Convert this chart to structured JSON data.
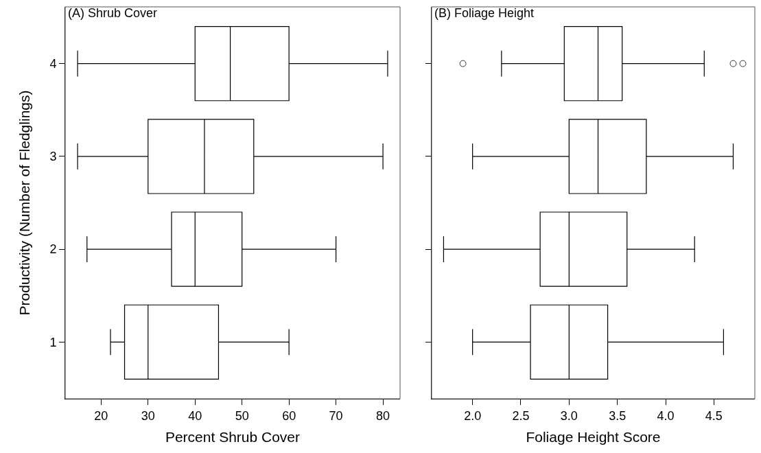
{
  "chart_data": [
    {
      "type": "box",
      "title": "(A) Shrub Cover",
      "xlabel": "Percent Shrub Cover",
      "ylabel": "Productivity (Number of Fledglings)",
      "orientation": "horizontal",
      "categories": [
        "4",
        "3",
        "2",
        "1"
      ],
      "boxes": [
        {
          "low": 15,
          "q1": 40,
          "median": 47.5,
          "q3": 60,
          "high": 81
        },
        {
          "low": 15,
          "q1": 30,
          "median": 42,
          "q3": 52.5,
          "high": 80
        },
        {
          "low": 17,
          "q1": 35,
          "median": 40,
          "q3": 50,
          "high": 70
        },
        {
          "low": 22,
          "q1": 25,
          "median": 30,
          "q3": 45,
          "high": 60
        }
      ],
      "xlim": [
        12.36,
        83.64
      ],
      "xticks": [
        20,
        30,
        40,
        50,
        60,
        70,
        80
      ]
    },
    {
      "type": "box",
      "title": "(B) Foliage Height",
      "xlabel": "Foliage Height Score",
      "orientation": "horizontal",
      "categories": [
        "4",
        "3",
        "2",
        "1"
      ],
      "boxes": [
        {
          "low": 2.3,
          "q1": 2.95,
          "median": 3.3,
          "q3": 3.55,
          "high": 4.4,
          "outliers": [
            1.9,
            4.7,
            4.8
          ]
        },
        {
          "low": 2.0,
          "q1": 3.0,
          "median": 3.3,
          "q3": 3.8,
          "high": 4.7
        },
        {
          "low": 1.7,
          "q1": 2.7,
          "median": 3.0,
          "q3": 3.6,
          "high": 4.3
        },
        {
          "low": 2.0,
          "q1": 2.6,
          "median": 3.0,
          "q3": 3.4,
          "high": 4.6
        }
      ],
      "xlim": [
        1.576,
        4.924
      ],
      "xticks": [
        {
          "value": 2,
          "label": "2.0"
        },
        {
          "value": 2.5,
          "label": "2.5"
        },
        {
          "value": 3,
          "label": "3.0"
        },
        {
          "value": 3.5,
          "label": "3.5"
        },
        {
          "value": 4,
          "label": "4.0"
        },
        {
          "value": 4.5,
          "label": "4.5"
        }
      ],
      "tick_labels": "x"
    }
  ]
}
